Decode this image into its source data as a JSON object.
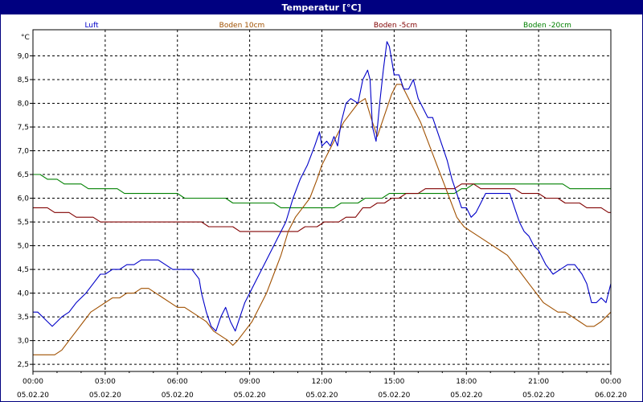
{
  "window": {
    "title": "Temperatur [°C]"
  },
  "chart_data": {
    "type": "line",
    "title": "Temperatur [°C]",
    "ylabel": "°C",
    "xlabel": "",
    "ylim": [
      2.35,
      9.55
    ],
    "xlim": [
      0,
      24
    ],
    "y_ticks": [
      2.5,
      3.0,
      3.5,
      4.0,
      4.5,
      5.0,
      5.5,
      6.0,
      6.5,
      7.0,
      7.5,
      8.0,
      8.5,
      9.0
    ],
    "y_tick_labels": [
      "2,5",
      "3,0",
      "3,5",
      "4,0",
      "4,5",
      "5,0",
      "5,5",
      "6,0",
      "6,5",
      "7,0",
      "7,5",
      "8,0",
      "8,5",
      "9,0"
    ],
    "x_ticks": [
      {
        "x": 0,
        "time": "00:00",
        "date": "05.02.20"
      },
      {
        "x": 3,
        "time": "03:00",
        "date": "05.02.20"
      },
      {
        "x": 6,
        "time": "06:00",
        "date": "05.02.20"
      },
      {
        "x": 9,
        "time": "09:00",
        "date": "05.02.20"
      },
      {
        "x": 12,
        "time": "12:00",
        "date": "05.02.20"
      },
      {
        "x": 15,
        "time": "15:00",
        "date": "05.02.20"
      },
      {
        "x": 18,
        "time": "18:00",
        "date": "05.02.20"
      },
      {
        "x": 21,
        "time": "21:00",
        "date": "05.02.20"
      },
      {
        "x": 24,
        "time": "00:00",
        "date": "06.02.20"
      }
    ],
    "grid": true,
    "legend_position": "top",
    "series": [
      {
        "name": "Luft",
        "color": "#0000c8",
        "x": [
          0,
          0.2,
          0.4,
          0.6,
          0.8,
          1.0,
          1.2,
          1.5,
          1.8,
          2.0,
          2.2,
          2.5,
          2.8,
          3.0,
          3.3,
          3.6,
          3.9,
          4.2,
          4.5,
          4.8,
          5.2,
          5.5,
          5.8,
          6.0,
          6.3,
          6.6,
          6.9,
          7.0,
          7.2,
          7.4,
          7.6,
          7.8,
          8.0,
          8.2,
          8.4,
          8.6,
          8.8,
          9.0,
          9.3,
          9.6,
          9.9,
          10.2,
          10.5,
          10.8,
          11.1,
          11.4,
          11.7,
          11.9,
          12.0,
          12.2,
          12.35,
          12.5,
          12.65,
          12.8,
          13.0,
          13.2,
          13.5,
          13.7,
          13.9,
          14.0,
          14.1,
          14.25,
          14.4,
          14.55,
          14.7,
          14.8,
          14.9,
          15.0,
          15.2,
          15.4,
          15.6,
          15.8,
          16.0,
          16.2,
          16.4,
          16.6,
          16.8,
          17.0,
          17.2,
          17.4,
          17.6,
          17.8,
          18.0,
          18.2,
          18.4,
          18.6,
          18.8,
          19.0,
          19.2,
          19.4,
          19.6,
          19.8,
          20.0,
          20.2,
          20.4,
          20.6,
          20.8,
          21.0,
          21.3,
          21.6,
          21.9,
          22.2,
          22.5,
          22.8,
          23.0,
          23.2,
          23.4,
          23.6,
          23.8,
          24.0
        ],
        "y": [
          3.6,
          3.6,
          3.5,
          3.4,
          3.3,
          3.4,
          3.5,
          3.6,
          3.8,
          3.9,
          4.0,
          4.2,
          4.4,
          4.4,
          4.5,
          4.5,
          4.6,
          4.6,
          4.7,
          4.7,
          4.7,
          4.6,
          4.5,
          4.5,
          4.5,
          4.5,
          4.3,
          4.0,
          3.6,
          3.3,
          3.2,
          3.5,
          3.7,
          3.4,
          3.2,
          3.5,
          3.8,
          4.0,
          4.3,
          4.6,
          4.9,
          5.2,
          5.5,
          6.0,
          6.4,
          6.7,
          7.1,
          7.4,
          7.1,
          7.2,
          7.1,
          7.3,
          7.1,
          7.6,
          8.0,
          8.1,
          8.0,
          8.5,
          8.7,
          8.5,
          7.5,
          7.2,
          8.0,
          8.7,
          9.3,
          9.2,
          8.9,
          8.6,
          8.6,
          8.3,
          8.3,
          8.5,
          8.1,
          7.9,
          7.7,
          7.7,
          7.4,
          7.1,
          6.8,
          6.4,
          6.1,
          5.8,
          5.8,
          5.6,
          5.7,
          5.9,
          6.1,
          6.1,
          6.1,
          6.1,
          6.1,
          6.1,
          5.8,
          5.5,
          5.3,
          5.2,
          5.0,
          4.9,
          4.6,
          4.4,
          4.5,
          4.6,
          4.6,
          4.4,
          4.2,
          3.8,
          3.8,
          3.9,
          3.8,
          4.2
        ]
      },
      {
        "name": "Boden 10cm",
        "color": "#a05000",
        "x": [
          0,
          0.9,
          1.2,
          1.5,
          1.8,
          2.1,
          2.4,
          2.7,
          3.0,
          3.3,
          3.6,
          3.9,
          4.2,
          4.5,
          4.8,
          5.1,
          5.4,
          5.7,
          6.0,
          6.3,
          6.6,
          6.9,
          7.2,
          7.5,
          7.8,
          8.1,
          8.3,
          8.5,
          8.8,
          9.1,
          9.4,
          9.7,
          10.0,
          10.3,
          10.6,
          10.9,
          11.2,
          11.5,
          11.8,
          12.0,
          12.3,
          12.6,
          12.9,
          13.2,
          13.5,
          13.8,
          14.1,
          14.3,
          14.5,
          14.7,
          14.9,
          15.1,
          15.3,
          15.5,
          15.8,
          16.1,
          16.4,
          16.7,
          17.0,
          17.3,
          17.6,
          17.9,
          18.2,
          18.5,
          18.8,
          19.1,
          19.4,
          19.7,
          20.0,
          20.3,
          20.6,
          20.9,
          21.2,
          21.5,
          21.8,
          22.1,
          22.4,
          22.7,
          23.0,
          23.3,
          23.6,
          24.0
        ],
        "y": [
          2.7,
          2.7,
          2.8,
          3.0,
          3.2,
          3.4,
          3.6,
          3.7,
          3.8,
          3.9,
          3.9,
          4.0,
          4.0,
          4.1,
          4.1,
          4.0,
          3.9,
          3.8,
          3.7,
          3.7,
          3.6,
          3.5,
          3.4,
          3.2,
          3.1,
          3.0,
          2.9,
          3.0,
          3.2,
          3.4,
          3.7,
          4.0,
          4.4,
          4.8,
          5.3,
          5.6,
          5.8,
          6.0,
          6.4,
          6.7,
          7.0,
          7.3,
          7.6,
          7.8,
          8.0,
          8.1,
          7.6,
          7.3,
          7.6,
          7.9,
          8.2,
          8.4,
          8.4,
          8.2,
          7.9,
          7.6,
          7.2,
          6.8,
          6.4,
          6.0,
          5.6,
          5.4,
          5.3,
          5.2,
          5.1,
          5.0,
          4.9,
          4.8,
          4.6,
          4.4,
          4.2,
          4.0,
          3.8,
          3.7,
          3.6,
          3.6,
          3.5,
          3.4,
          3.3,
          3.3,
          3.4,
          3.6
        ]
      },
      {
        "name": "Boden -5cm",
        "color": "#800000",
        "x": [
          0,
          0.6,
          0.9,
          1.5,
          1.8,
          2.5,
          2.8,
          7.0,
          7.3,
          8.3,
          8.6,
          11.0,
          11.3,
          11.8,
          12.1,
          12.7,
          13.0,
          13.4,
          13.7,
          14.0,
          14.3,
          14.6,
          14.9,
          15.2,
          15.5,
          16.0,
          16.3,
          17.5,
          17.8,
          18.3,
          18.6,
          20.0,
          20.3,
          21.0,
          21.3,
          21.8,
          22.1,
          22.7,
          23.0,
          23.6,
          23.9,
          24.0
        ],
        "y": [
          5.8,
          5.8,
          5.7,
          5.7,
          5.6,
          5.6,
          5.5,
          5.5,
          5.4,
          5.4,
          5.3,
          5.3,
          5.4,
          5.4,
          5.5,
          5.5,
          5.6,
          5.6,
          5.8,
          5.8,
          5.9,
          5.9,
          6.0,
          6.0,
          6.1,
          6.1,
          6.2,
          6.2,
          6.3,
          6.3,
          6.2,
          6.2,
          6.1,
          6.1,
          6.0,
          6.0,
          5.9,
          5.9,
          5.8,
          5.8,
          5.7,
          5.7
        ]
      },
      {
        "name": "Boden -20cm",
        "color": "#008000",
        "x": [
          0,
          0.3,
          0.6,
          1.0,
          1.3,
          2.0,
          2.3,
          3.5,
          3.8,
          6.0,
          6.3,
          8.0,
          8.3,
          10.0,
          10.3,
          12.5,
          12.8,
          13.5,
          13.8,
          14.5,
          14.8,
          17.5,
          17.8,
          18.0,
          18.3,
          22.0,
          22.3,
          24.0
        ],
        "y": [
          6.5,
          6.5,
          6.4,
          6.4,
          6.3,
          6.3,
          6.2,
          6.2,
          6.1,
          6.1,
          6.0,
          6.0,
          5.9,
          5.9,
          5.8,
          5.8,
          5.9,
          5.9,
          6.0,
          6.0,
          6.1,
          6.1,
          6.2,
          6.2,
          6.3,
          6.3,
          6.2,
          6.2
        ]
      }
    ]
  }
}
